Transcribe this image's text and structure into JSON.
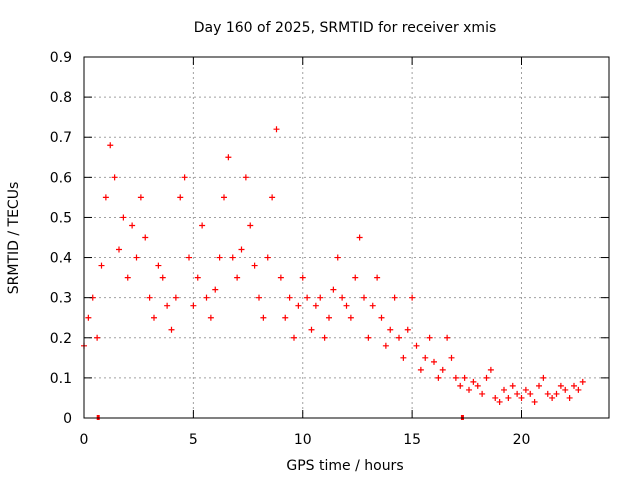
{
  "chart_data": {
    "type": "scatter",
    "title": "Day 160 of 2025, SRMTID for receiver xmis",
    "xlabel": "GPS time / hours",
    "ylabel": "SRMTID / TECUs",
    "xlim": [
      0,
      24.0
    ],
    "ylim": [
      0,
      0.9
    ],
    "x_ticks": [
      0,
      5,
      10,
      15,
      20
    ],
    "x_tick_labels": [
      "0",
      "5",
      "10",
      "15",
      "20"
    ],
    "y_ticks": [
      0,
      0.1,
      0.2,
      0.3,
      0.4,
      0.5,
      0.6,
      0.7,
      0.8,
      0.9
    ],
    "y_tick_labels": [
      "0",
      "0.1",
      "0.2",
      "0.3",
      "0.4",
      "0.5",
      "0.6",
      "0.7",
      "0.8",
      "0.9"
    ],
    "grid": true,
    "marker": "plus",
    "color": "#ff0000",
    "series": [
      {
        "name": "SRMTID",
        "x": [
          0.0,
          0.2,
          0.4,
          0.6,
          0.8,
          1.0,
          1.2,
          1.4,
          1.6,
          1.8,
          2.0,
          2.2,
          2.4,
          2.6,
          2.8,
          3.0,
          3.2,
          3.4,
          3.6,
          3.8,
          4.0,
          4.2,
          4.4,
          4.6,
          4.8,
          5.0,
          5.2,
          5.4,
          5.6,
          5.8,
          6.0,
          6.2,
          6.4,
          6.6,
          6.8,
          7.0,
          7.2,
          7.4,
          7.6,
          7.8,
          8.0,
          8.2,
          8.4,
          8.6,
          8.8,
          9.0,
          9.2,
          9.4,
          9.6,
          9.8,
          10.0,
          10.2,
          10.4,
          10.6,
          10.8,
          11.0,
          11.2,
          11.4,
          11.6,
          11.8,
          12.0,
          12.2,
          12.4,
          12.6,
          12.8,
          13.0,
          13.2,
          13.4,
          13.6,
          13.8,
          14.0,
          14.2,
          14.4,
          14.6,
          14.8,
          15.0,
          15.2,
          15.4,
          15.6,
          15.8,
          16.0,
          16.2,
          16.4,
          16.6,
          16.8,
          17.0,
          17.2,
          17.4,
          17.6,
          17.8,
          18.0,
          18.2,
          18.4,
          18.6,
          18.8,
          19.0,
          19.2,
          19.4,
          19.6,
          19.8,
          20.0,
          20.2,
          20.4,
          20.6,
          20.8,
          21.0,
          21.2,
          21.4,
          21.6,
          21.8,
          22.0,
          22.2,
          22.4,
          22.6,
          22.8
        ],
        "y": [
          0.18,
          0.25,
          0.3,
          0.2,
          0.38,
          0.55,
          0.68,
          0.6,
          0.42,
          0.5,
          0.35,
          0.48,
          0.4,
          0.55,
          0.45,
          0.3,
          0.25,
          0.38,
          0.35,
          0.28,
          0.22,
          0.3,
          0.55,
          0.6,
          0.4,
          0.28,
          0.35,
          0.48,
          0.3,
          0.25,
          0.32,
          0.4,
          0.55,
          0.65,
          0.4,
          0.35,
          0.42,
          0.6,
          0.48,
          0.38,
          0.3,
          0.25,
          0.4,
          0.55,
          0.72,
          0.35,
          0.25,
          0.3,
          0.2,
          0.28,
          0.35,
          0.3,
          0.22,
          0.28,
          0.3,
          0.2,
          0.25,
          0.32,
          0.4,
          0.3,
          0.28,
          0.25,
          0.35,
          0.45,
          0.3,
          0.2,
          0.28,
          0.35,
          0.25,
          0.18,
          0.22,
          0.3,
          0.2,
          0.15,
          0.22,
          0.3,
          0.18,
          0.12,
          0.15,
          0.2,
          0.14,
          0.1,
          0.12,
          0.2,
          0.15,
          0.1,
          0.08,
          0.1,
          0.07,
          0.09,
          0.08,
          0.06,
          0.1,
          0.12,
          0.05,
          0.04,
          0.07,
          0.05,
          0.08,
          0.06,
          0.05,
          0.07,
          0.06,
          0.04,
          0.08,
          0.1,
          0.06,
          0.05,
          0.06,
          0.08,
          0.07,
          0.05,
          0.08,
          0.07,
          0.09
        ]
      }
    ],
    "gap_markers_x": [
      0.65,
      17.3
    ]
  }
}
